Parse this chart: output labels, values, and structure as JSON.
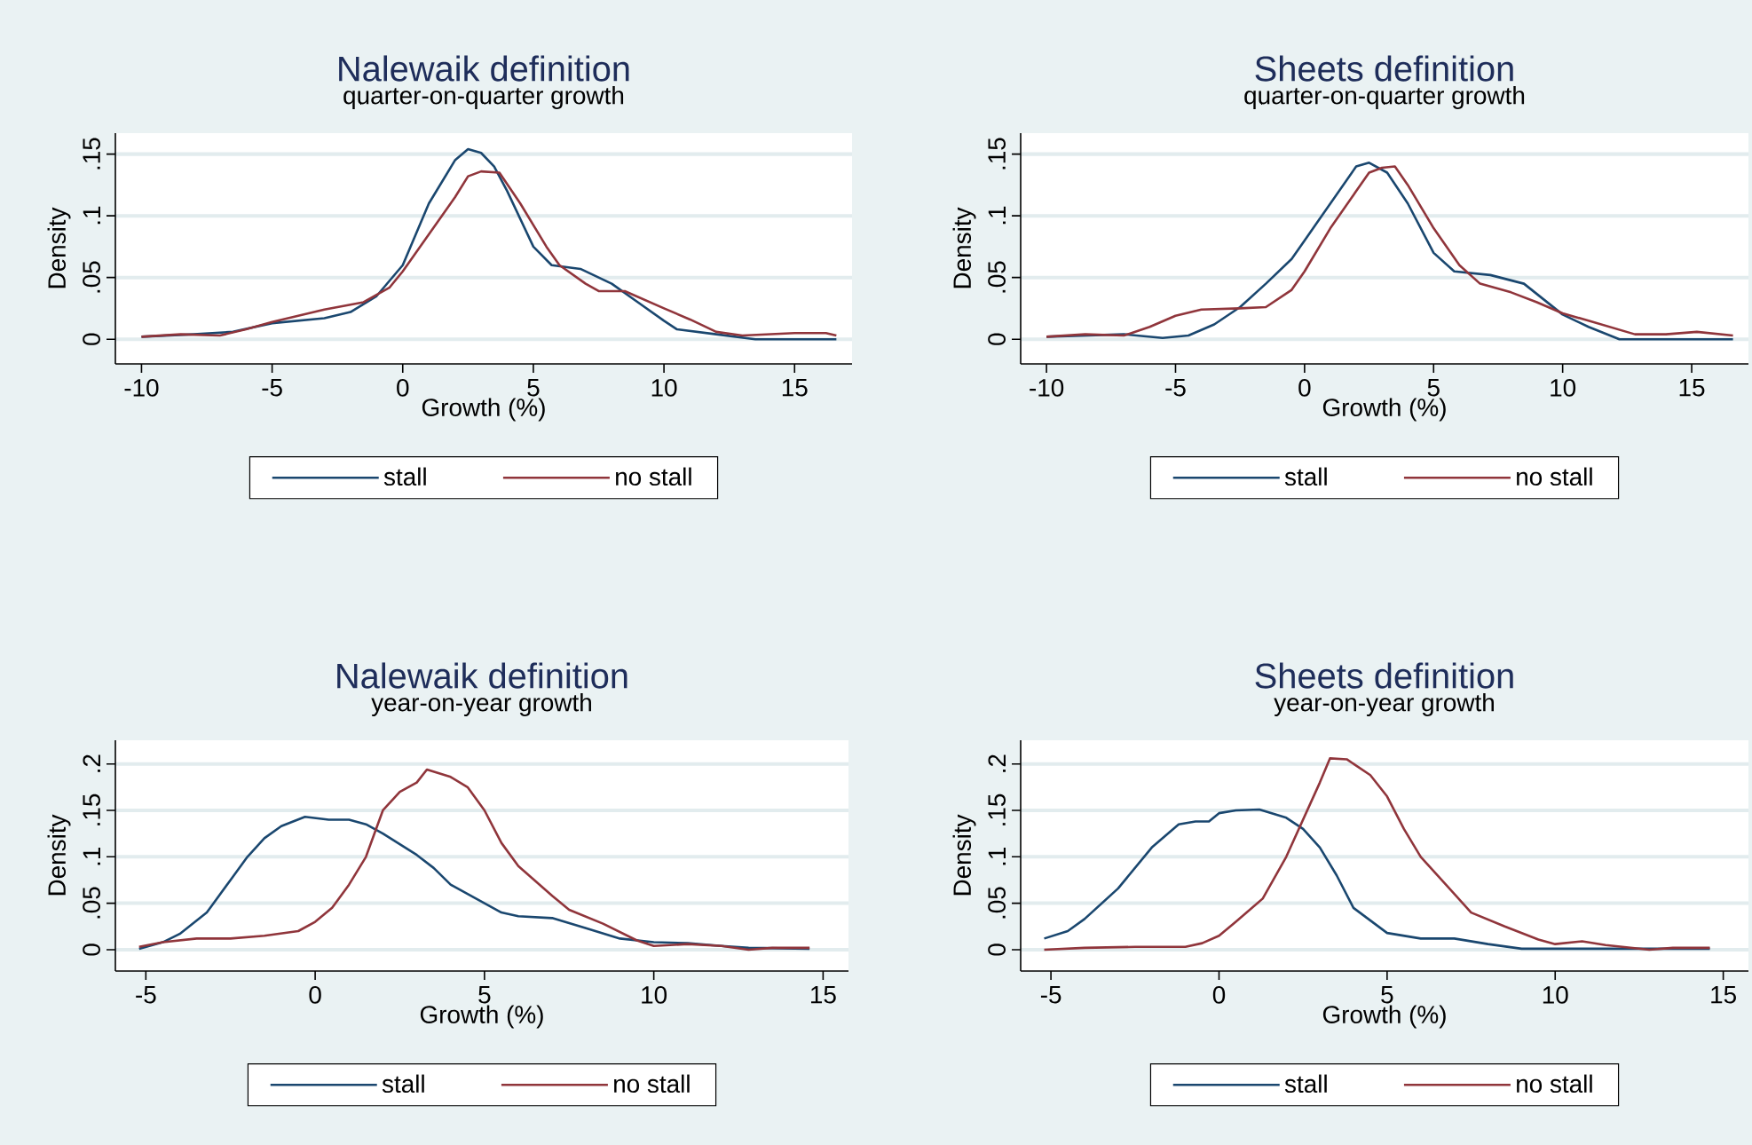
{
  "chart_data": [
    {
      "type": "line",
      "title": "Nalewaik definition",
      "subtitle": "quarter-on-quarter growth",
      "xlabel": "Growth (%)",
      "ylabel": "Density",
      "xlim": [
        -11,
        17.2
      ],
      "ylim": [
        -0.02,
        0.167
      ],
      "xticks": [
        -10,
        -5,
        0,
        5,
        10,
        15
      ],
      "yticks": [
        {
          "value": 0,
          "label": "0"
        },
        {
          "value": 0.05,
          "label": ".05"
        },
        {
          "value": 0.1,
          "label": ".1"
        },
        {
          "value": 0.15,
          "label": ".15"
        }
      ],
      "grid": "y",
      "legend": "bottom",
      "series": [
        {
          "name": "stall",
          "color": "#1a476f",
          "x": [
            -10,
            -8,
            -6.5,
            -5,
            -3,
            -2,
            -1,
            0,
            1,
            2,
            2.5,
            3,
            3.5,
            4,
            5,
            5.7,
            6.8,
            8,
            9,
            10,
            10.5,
            12,
            13.5,
            16.6
          ],
          "values": [
            0.002,
            0.004,
            0.006,
            0.013,
            0.017,
            0.022,
            0.035,
            0.06,
            0.11,
            0.145,
            0.154,
            0.151,
            0.14,
            0.12,
            0.075,
            0.06,
            0.057,
            0.045,
            0.03,
            0.015,
            0.008,
            0.004,
            0.0,
            0.0
          ]
        },
        {
          "name": "no stall",
          "color": "#90353b",
          "x": [
            -10,
            -8.5,
            -7,
            -6,
            -5,
            -3,
            -1.5,
            -0.5,
            0,
            1,
            2,
            2.5,
            3,
            3.7,
            4.5,
            5.5,
            6,
            7,
            7.5,
            8.5,
            10,
            11,
            12,
            13,
            15,
            16.2,
            16.6
          ],
          "values": [
            0.002,
            0.004,
            0.003,
            0.008,
            0.014,
            0.024,
            0.03,
            0.042,
            0.055,
            0.085,
            0.115,
            0.132,
            0.136,
            0.135,
            0.11,
            0.075,
            0.06,
            0.045,
            0.039,
            0.039,
            0.025,
            0.016,
            0.006,
            0.003,
            0.005,
            0.005,
            0.003
          ]
        }
      ]
    },
    {
      "type": "line",
      "title": "Sheets definition",
      "subtitle": "quarter-on-quarter growth",
      "xlabel": "Growth (%)",
      "ylabel": "Density",
      "xlim": [
        -11,
        17.2
      ],
      "ylim": [
        -0.02,
        0.167
      ],
      "xticks": [
        -10,
        -5,
        0,
        5,
        10,
        15
      ],
      "yticks": [
        {
          "value": 0,
          "label": "0"
        },
        {
          "value": 0.05,
          "label": ".05"
        },
        {
          "value": 0.1,
          "label": ".1"
        },
        {
          "value": 0.15,
          "label": ".15"
        }
      ],
      "grid": "y",
      "legend": "bottom",
      "series": [
        {
          "name": "stall",
          "color": "#1a476f",
          "x": [
            -10,
            -7,
            -5.5,
            -4.5,
            -3.5,
            -2.5,
            -1.5,
            -0.5,
            0,
            1,
            2,
            2.5,
            3.2,
            4,
            5,
            5.8,
            7.2,
            8.5,
            10,
            11,
            12.2,
            16.6
          ],
          "values": [
            0.002,
            0.004,
            0.001,
            0.003,
            0.012,
            0.026,
            0.045,
            0.065,
            0.08,
            0.11,
            0.14,
            0.143,
            0.135,
            0.11,
            0.07,
            0.055,
            0.052,
            0.045,
            0.02,
            0.01,
            0.0,
            0.0
          ]
        },
        {
          "name": "no stall",
          "color": "#90353b",
          "x": [
            -10,
            -8.5,
            -7,
            -6,
            -5,
            -4,
            -2.5,
            -1.5,
            -0.5,
            0,
            1,
            2,
            2.5,
            3,
            3.5,
            4,
            5,
            6,
            6.8,
            8,
            9,
            10,
            11,
            12.8,
            14,
            15.2,
            16.6
          ],
          "values": [
            0.002,
            0.004,
            0.003,
            0.01,
            0.019,
            0.024,
            0.025,
            0.026,
            0.04,
            0.055,
            0.09,
            0.12,
            0.135,
            0.139,
            0.14,
            0.125,
            0.09,
            0.06,
            0.045,
            0.038,
            0.03,
            0.021,
            0.015,
            0.004,
            0.004,
            0.006,
            0.003
          ]
        }
      ]
    },
    {
      "type": "line",
      "title": "Nalewaik definition",
      "subtitle": "year-on-year growth",
      "xlabel": "Growth (%)",
      "ylabel": "Density",
      "xlim": [
        -5.9,
        15.75
      ],
      "ylim": [
        -0.023,
        0.2255
      ],
      "xticks": [
        -5,
        0,
        5,
        10,
        15
      ],
      "yticks": [
        {
          "value": 0,
          "label": "0"
        },
        {
          "value": 0.05,
          "label": ".05"
        },
        {
          "value": 0.1,
          "label": ".1"
        },
        {
          "value": 0.15,
          "label": ".15"
        },
        {
          "value": 0.2,
          "label": ".2"
        }
      ],
      "grid": "y",
      "legend": "bottom",
      "series": [
        {
          "name": "stall",
          "color": "#1a476f",
          "x": [
            -5.2,
            -4.5,
            -4,
            -3.2,
            -2.5,
            -2,
            -1.5,
            -1,
            -0.3,
            0.4,
            1,
            1.5,
            2,
            3,
            3.5,
            4,
            5,
            5.5,
            6,
            7,
            8,
            9,
            10,
            11,
            12,
            12.8,
            14.6
          ],
          "values": [
            0.001,
            0.008,
            0.017,
            0.04,
            0.075,
            0.1,
            0.12,
            0.133,
            0.143,
            0.14,
            0.14,
            0.135,
            0.125,
            0.102,
            0.088,
            0.07,
            0.05,
            0.04,
            0.036,
            0.034,
            0.023,
            0.012,
            0.008,
            0.007,
            0.004,
            0.002,
            0.001
          ]
        },
        {
          "name": "no stall",
          "color": "#90353b",
          "x": [
            -5.2,
            -4.5,
            -3.5,
            -2.5,
            -1.5,
            -0.5,
            0,
            0.5,
            1,
            1.5,
            2,
            2.5,
            3,
            3.3,
            4,
            4.5,
            5,
            5.5,
            6,
            7,
            7.5,
            8.5,
            9.5,
            10,
            11,
            12,
            12.8,
            13.5,
            14.6
          ],
          "values": [
            0.003,
            0.008,
            0.012,
            0.012,
            0.015,
            0.02,
            0.03,
            0.045,
            0.07,
            0.1,
            0.15,
            0.17,
            0.18,
            0.194,
            0.186,
            0.175,
            0.15,
            0.115,
            0.09,
            0.058,
            0.043,
            0.028,
            0.01,
            0.004,
            0.006,
            0.004,
            0.0,
            0.002,
            0.002
          ]
        }
      ]
    },
    {
      "type": "line",
      "title": "Sheets definition",
      "subtitle": "year-on-year growth",
      "xlabel": "Growth (%)",
      "ylabel": "Density",
      "xlim": [
        -5.9,
        15.75
      ],
      "ylim": [
        -0.023,
        0.2255
      ],
      "xticks": [
        -5,
        0,
        5,
        10,
        15
      ],
      "yticks": [
        {
          "value": 0,
          "label": "0"
        },
        {
          "value": 0.05,
          "label": ".05"
        },
        {
          "value": 0.1,
          "label": ".1"
        },
        {
          "value": 0.15,
          "label": ".15"
        },
        {
          "value": 0.2,
          "label": ".2"
        }
      ],
      "grid": "y",
      "legend": "bottom",
      "series": [
        {
          "name": "stall",
          "color": "#1a476f",
          "x": [
            -5.2,
            -4.5,
            -4,
            -3,
            -2,
            -1.2,
            -0.7,
            -0.3,
            0,
            0.5,
            1.2,
            2,
            2.5,
            3,
            3.5,
            4,
            5,
            6,
            7,
            8,
            9,
            14.6
          ],
          "values": [
            0.012,
            0.02,
            0.033,
            0.066,
            0.11,
            0.135,
            0.138,
            0.138,
            0.147,
            0.15,
            0.151,
            0.142,
            0.13,
            0.11,
            0.08,
            0.045,
            0.018,
            0.012,
            0.012,
            0.006,
            0.001,
            0.001
          ]
        },
        {
          "name": "no stall",
          "color": "#90353b",
          "x": [
            -5.2,
            -4,
            -2.5,
            -1,
            -0.5,
            0,
            0.5,
            1.3,
            2,
            2.5,
            3,
            3.3,
            3.8,
            4.5,
            5,
            5.5,
            6,
            7,
            7.5,
            8.5,
            9.5,
            10,
            10.8,
            11.5,
            12.8,
            13.5,
            14.6
          ],
          "values": [
            0.0,
            0.002,
            0.003,
            0.003,
            0.007,
            0.015,
            0.03,
            0.055,
            0.1,
            0.14,
            0.18,
            0.206,
            0.205,
            0.188,
            0.165,
            0.13,
            0.1,
            0.06,
            0.04,
            0.025,
            0.011,
            0.006,
            0.009,
            0.005,
            0.0,
            0.002,
            0.002
          ]
        }
      ]
    }
  ]
}
